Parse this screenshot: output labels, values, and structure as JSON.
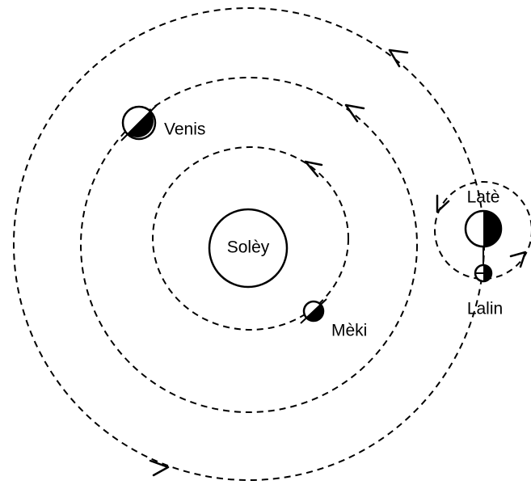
{
  "labels": {
    "sun": "Solèy",
    "venus": "Venis",
    "mercury": "Mèki",
    "earth": "Latè",
    "moon": "Lalin"
  }
}
